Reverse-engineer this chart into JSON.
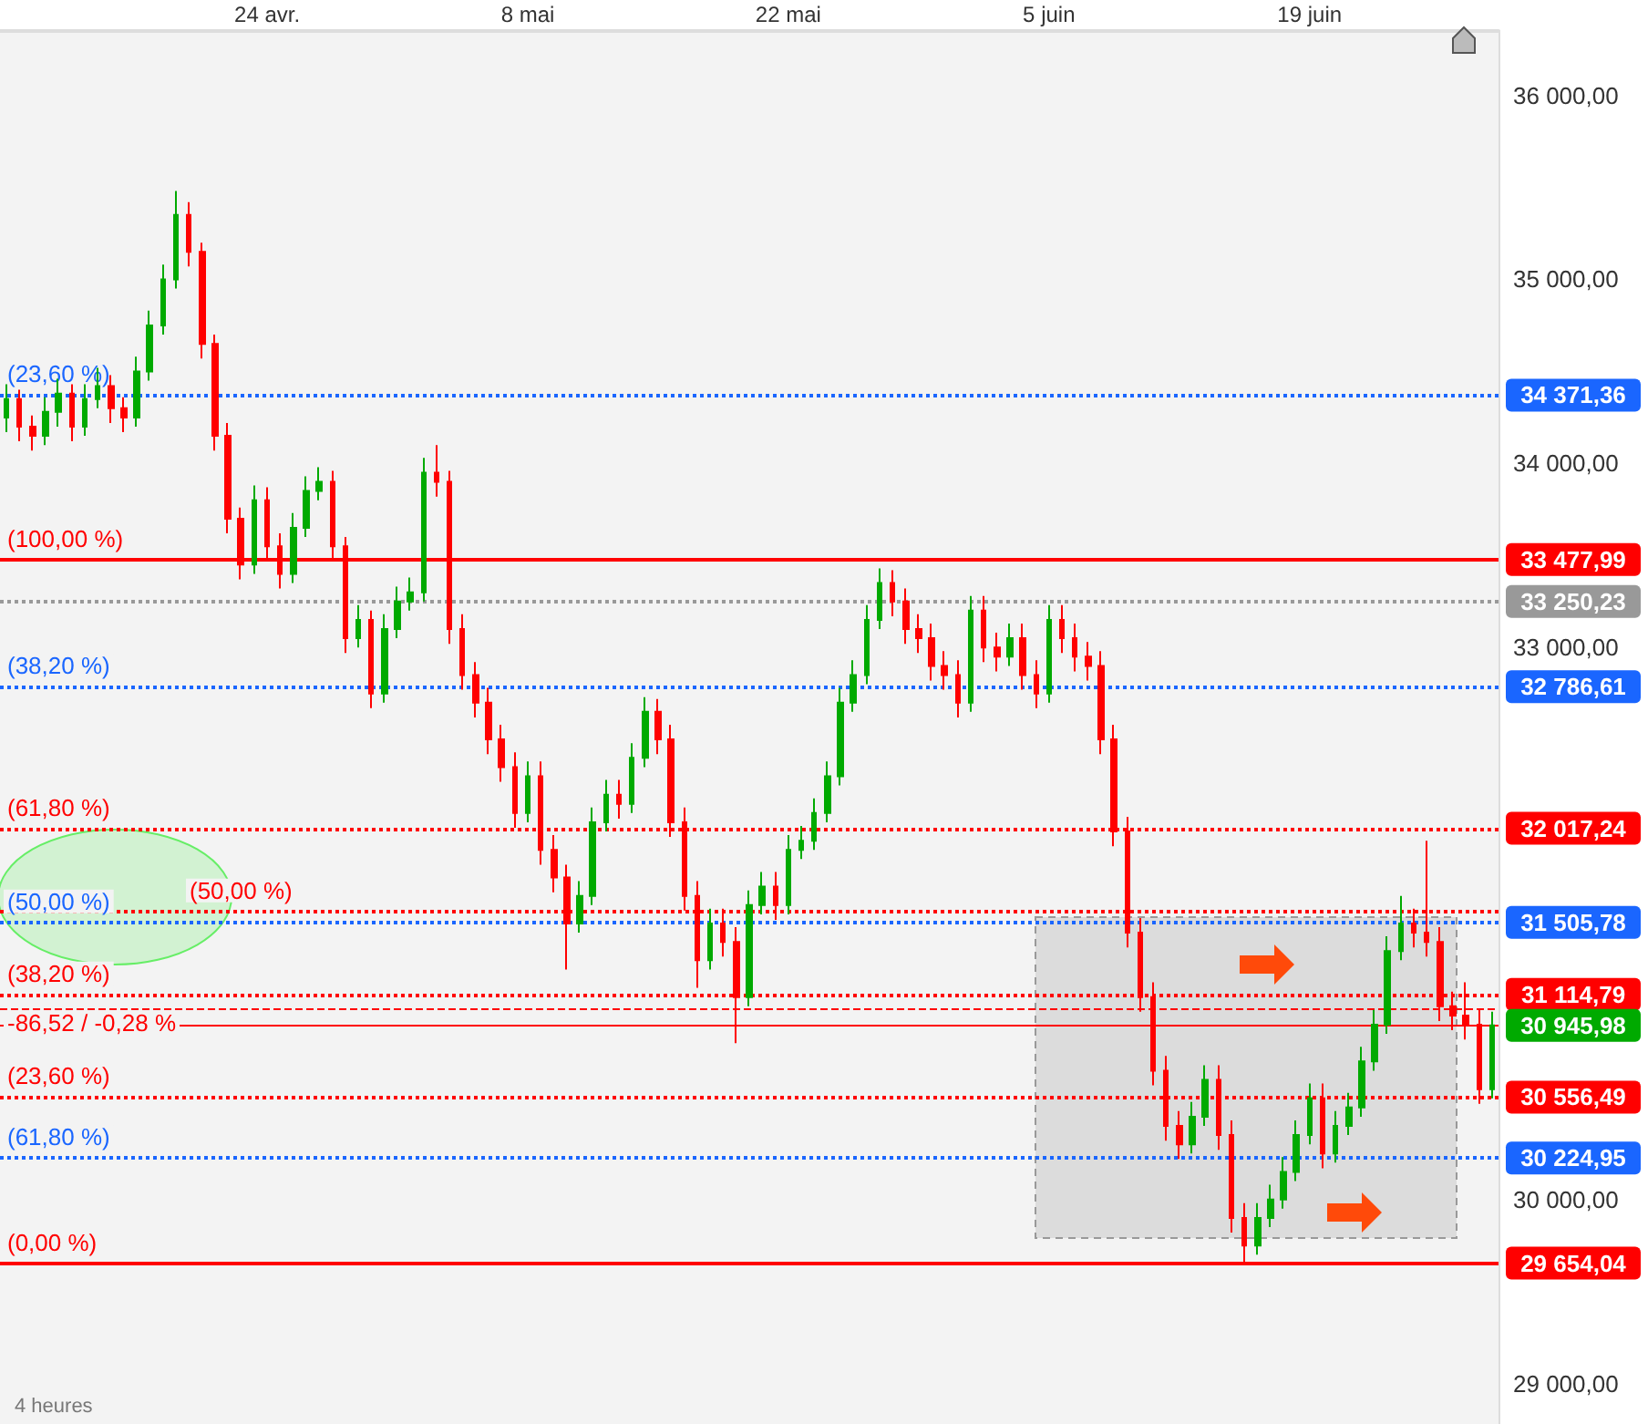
{
  "chart_data": {
    "type": "candlestick",
    "categories": [
      null,
      null,
      null,
      null,
      null,
      null,
      null,
      null,
      null,
      null,
      null,
      null,
      null,
      null,
      null,
      null,
      null,
      null,
      null,
      null,
      "24 avr.",
      null,
      null,
      null,
      null,
      null,
      null,
      null,
      null,
      null,
      null,
      null,
      null,
      null,
      null,
      null,
      null,
      null,
      null,
      null,
      "8 mai",
      null,
      null,
      null,
      null,
      null,
      null,
      null,
      null,
      null,
      null,
      null,
      null,
      null,
      null,
      null,
      null,
      null,
      null,
      null,
      "22 mai",
      null,
      null,
      null,
      null,
      null,
      null,
      null,
      null,
      null,
      null,
      null,
      null,
      null,
      null,
      null,
      null,
      null,
      null,
      null,
      "5 juin",
      null,
      null,
      null,
      null,
      null,
      null,
      null,
      null,
      null,
      null,
      null,
      null,
      null,
      null,
      null,
      null,
      null,
      null,
      null,
      "19 juin",
      null,
      null,
      null,
      null,
      null,
      null,
      null,
      null,
      null,
      null,
      null,
      null,
      null,
      null
    ],
    "ohlc": [
      [
        34250,
        34430,
        34170,
        34350
      ],
      [
        34350,
        34400,
        34120,
        34200
      ],
      [
        34200,
        34260,
        34070,
        34150
      ],
      [
        34150,
        34360,
        34100,
        34280
      ],
      [
        34280,
        34460,
        34200,
        34380
      ],
      [
        34380,
        34430,
        34120,
        34200
      ],
      [
        34200,
        34430,
        34150,
        34350
      ],
      [
        34350,
        34520,
        34300,
        34420
      ],
      [
        34420,
        34480,
        34220,
        34300
      ],
      [
        34300,
        34360,
        34170,
        34250
      ],
      [
        34250,
        34580,
        34200,
        34500
      ],
      [
        34500,
        34830,
        34450,
        34750
      ],
      [
        34750,
        35080,
        34700,
        35000
      ],
      [
        35000,
        35480,
        34950,
        35350
      ],
      [
        35350,
        35420,
        35070,
        35150
      ],
      [
        35150,
        35200,
        34570,
        34650
      ],
      [
        34650,
        34700,
        34070,
        34150
      ],
      [
        34150,
        34220,
        33620,
        33700
      ],
      [
        33700,
        33760,
        33370,
        33450
      ],
      [
        33450,
        33880,
        33400,
        33800
      ],
      [
        33800,
        33870,
        33470,
        33550
      ],
      [
        33550,
        33620,
        33320,
        33400
      ],
      [
        33400,
        33730,
        33350,
        33650
      ],
      [
        33650,
        33930,
        33600,
        33850
      ],
      [
        33850,
        33980,
        33800,
        33900
      ],
      [
        33900,
        33960,
        33470,
        33550
      ],
      [
        33550,
        33600,
        32970,
        33050
      ],
      [
        33050,
        33230,
        33000,
        33150
      ],
      [
        33150,
        33200,
        32670,
        32750
      ],
      [
        32750,
        33180,
        32700,
        33100
      ],
      [
        33100,
        33330,
        33050,
        33250
      ],
      [
        33250,
        33380,
        33200,
        33300
      ],
      [
        33300,
        34030,
        33250,
        33950
      ],
      [
        33950,
        34100,
        33820,
        33900
      ],
      [
        33900,
        33960,
        33020,
        33100
      ],
      [
        33100,
        33180,
        32770,
        32850
      ],
      [
        32850,
        32920,
        32620,
        32700
      ],
      [
        32700,
        32780,
        32420,
        32500
      ],
      [
        32500,
        32580,
        32270,
        32350
      ],
      [
        32350,
        32430,
        32020,
        32100
      ],
      [
        32100,
        32380,
        32050,
        32300
      ],
      [
        32300,
        32380,
        31820,
        31900
      ],
      [
        31900,
        31980,
        31670,
        31750
      ],
      [
        31750,
        31820,
        31250,
        31500
      ],
      [
        31500,
        31730,
        31450,
        31650
      ],
      [
        31650,
        32130,
        31600,
        32050
      ],
      [
        32050,
        32280,
        32000,
        32200
      ],
      [
        32200,
        32280,
        32070,
        32150
      ],
      [
        32150,
        32480,
        32100,
        32400
      ],
      [
        32400,
        32730,
        32350,
        32650
      ],
      [
        32650,
        32720,
        32420,
        32500
      ],
      [
        32500,
        32580,
        31970,
        32050
      ],
      [
        32050,
        32130,
        31570,
        31650
      ],
      [
        31650,
        31730,
        31150,
        31300
      ],
      [
        31300,
        31580,
        31250,
        31500
      ],
      [
        31500,
        31580,
        31320,
        31400
      ],
      [
        31400,
        31480,
        30850,
        31100
      ],
      [
        31100,
        31680,
        31050,
        31600
      ],
      [
        31600,
        31780,
        31550,
        31700
      ],
      [
        31700,
        31780,
        31520,
        31600
      ],
      [
        31600,
        31980,
        31550,
        31900
      ],
      [
        31900,
        32030,
        31850,
        31950
      ],
      [
        31950,
        32180,
        31900,
        32100
      ],
      [
        32100,
        32380,
        32050,
        32300
      ],
      [
        32300,
        32780,
        32250,
        32700
      ],
      [
        32700,
        32930,
        32650,
        32850
      ],
      [
        32850,
        33230,
        32800,
        33150
      ],
      [
        33150,
        33430,
        33100,
        33350
      ],
      [
        33350,
        33420,
        33170,
        33250
      ],
      [
        33250,
        33320,
        33020,
        33100
      ],
      [
        33100,
        33180,
        32970,
        33050
      ],
      [
        33050,
        33130,
        32820,
        32900
      ],
      [
        32900,
        32980,
        32770,
        32850
      ],
      [
        32850,
        32930,
        32620,
        32700
      ],
      [
        32700,
        33280,
        32650,
        33200
      ],
      [
        33200,
        33280,
        32920,
        33000
      ],
      [
        33000,
        33080,
        32870,
        32950
      ],
      [
        32950,
        33130,
        32900,
        33050
      ],
      [
        33050,
        33130,
        32770,
        32850
      ],
      [
        32850,
        32930,
        32670,
        32750
      ],
      [
        32750,
        33230,
        32700,
        33150
      ],
      [
        33150,
        33230,
        32970,
        33050
      ],
      [
        33050,
        33130,
        32870,
        32950
      ],
      [
        32950,
        33030,
        32820,
        32900
      ],
      [
        32900,
        32980,
        32420,
        32500
      ],
      [
        32500,
        32580,
        31920,
        32000
      ],
      [
        32000,
        32080,
        31370,
        31450
      ],
      [
        31450,
        31530,
        31020,
        31100
      ],
      [
        31100,
        31180,
        30620,
        30700
      ],
      [
        30700,
        30780,
        30320,
        30400
      ],
      [
        30400,
        30480,
        30220,
        30300
      ],
      [
        30300,
        30530,
        30250,
        30450
      ],
      [
        30450,
        30730,
        30400,
        30650
      ],
      [
        30650,
        30730,
        30270,
        30350
      ],
      [
        30350,
        30430,
        29820,
        29900
      ],
      [
        29900,
        29980,
        29654.04,
        29750
      ],
      [
        29750,
        29980,
        29700,
        29900
      ],
      [
        29900,
        30080,
        29850,
        30000
      ],
      [
        30000,
        30230,
        29950,
        30150
      ],
      [
        30150,
        30430,
        30100,
        30350
      ],
      [
        30350,
        30630,
        30300,
        30550
      ],
      [
        30550,
        30630,
        30170,
        30250
      ],
      [
        30250,
        30480,
        30200,
        30400
      ],
      [
        30400,
        30580,
        30350,
        30500
      ],
      [
        30500,
        30830,
        30450,
        30750
      ],
      [
        30750,
        31030,
        30700,
        30950
      ],
      [
        30950,
        31430,
        30900,
        31350
      ],
      [
        31350,
        31650,
        31300,
        31500
      ],
      [
        31500,
        31580,
        31370,
        31450
      ],
      [
        31450,
        31950,
        31320,
        31400
      ],
      [
        31400,
        31480,
        30970,
        31050
      ],
      [
        31050,
        31130,
        30920,
        31000
      ],
      [
        31000,
        31180,
        30870,
        30950
      ],
      [
        30950,
        31030,
        30520,
        30600
      ],
      [
        30600,
        31020,
        30550,
        30945.98
      ]
    ],
    "ylim": [
      28780,
      36350
    ],
    "yticks": [
      {
        "value": 29000,
        "label": "29 000,00"
      },
      {
        "value": 30000,
        "label": "30 000,00"
      },
      {
        "value": 33000,
        "label": "33 000,00"
      },
      {
        "value": 34000,
        "label": "34 000,00"
      },
      {
        "value": 35000,
        "label": "35 000,00"
      },
      {
        "value": 36000,
        "label": "36 000,00"
      }
    ],
    "ref_lines": [
      {
        "axis": "y",
        "value": 34371.36,
        "label": "34 371,36",
        "color": "#1a66ff",
        "line_style": "dotted"
      },
      {
        "axis": "y",
        "value": 32786.61,
        "label": "32 786,61",
        "color": "#1a66ff",
        "line_style": "dotted"
      },
      {
        "axis": "y",
        "value": 31505.78,
        "label": "31 505,78",
        "color": "#1a66ff",
        "line_style": "dotted"
      },
      {
        "axis": "y",
        "value": 30224.95,
        "label": "30 224,95",
        "color": "#1a66ff",
        "line_style": "dotted"
      },
      {
        "axis": "y",
        "value": 33477.99,
        "label": "33 477,99",
        "color": "#ff0000",
        "line_style": "solid"
      },
      {
        "axis": "y",
        "value": 32017.24,
        "label": "32 017,24",
        "color": "#ff0000",
        "line_style": "dotted"
      },
      {
        "axis": "y",
        "value": 31566.02,
        "color": "#ff0000",
        "line_style": "dotted"
      },
      {
        "axis": "y",
        "value": 31114.79,
        "label": "31 114,79",
        "color": "#ff0000",
        "line_style": "dotted"
      },
      {
        "axis": "y",
        "value": 30556.49,
        "label": "30 556,49",
        "color": "#ff0000",
        "line_style": "dotted"
      },
      {
        "axis": "y",
        "value": 29654.04,
        "label": "29 654,04",
        "color": "#ff0000",
        "line_style": "solid"
      },
      {
        "axis": "y",
        "value": 33250.23,
        "label": "33 250,23",
        "color": "#999999",
        "line_style": "dotted"
      },
      {
        "axis": "y",
        "value": 31032.5,
        "color": "#ff0000",
        "line_style": "dashed"
      },
      {
        "axis": "y",
        "value": 30945.98,
        "label": "30 945,98",
        "color": "#ff0000",
        "line_style": "solid"
      }
    ],
    "annotations": [
      {
        "text": "(23,60 %)",
        "y": 34371.36
      },
      {
        "text": "(38,20 %)",
        "y": 32786.61
      },
      {
        "text": "(50,00 %)",
        "y": 31505.78
      },
      {
        "text": "(61,80 %)",
        "y": 30224.95
      },
      {
        "text": "(100,00 %)",
        "y": 33477.99
      },
      {
        "text": "(61,80 %)",
        "y": 32017.24
      },
      {
        "text": "(50,00 %)",
        "y": 31566.02
      },
      {
        "text": "(38,20 %)",
        "y": 31114.79
      },
      {
        "text": "(23,60 %)",
        "y": 30556.49
      },
      {
        "text": "(0,00 %)",
        "y": 29654.04
      },
      {
        "text": "-86,52 / -0,28 %",
        "y": 31032.5
      },
      "4 heures"
    ]
  }
}
